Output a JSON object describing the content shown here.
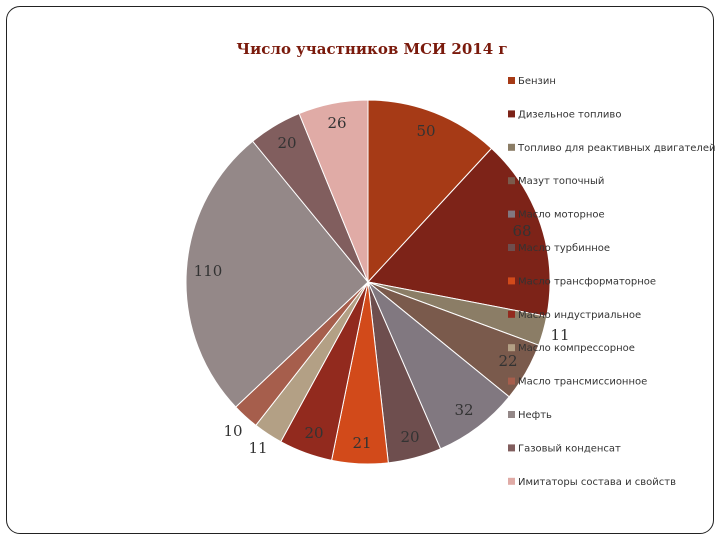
{
  "chart_data": {
    "type": "pie",
    "title": "Число участников МСИ 2014 г",
    "legend_position": "right",
    "categories": [
      "Бензин",
      "Дизельное топливо",
      "Топливо для реактивных двигателей",
      "Мазут топочный",
      "Масло моторное",
      "Масло турбинное",
      "Масло трансформаторное",
      "Масло индустриальное",
      "Масло компрессорное",
      "Масло трансмиссионное",
      "Нефть",
      "Газовый конденсат",
      "Имитаторы состава и свойств"
    ],
    "values": [
      50,
      68,
      11,
      22,
      32,
      20,
      21,
      20,
      11,
      10,
      110,
      20,
      26
    ],
    "colors": [
      "#a63a16",
      "#7d2318",
      "#8b7d66",
      "#7a5a4c",
      "#817880",
      "#6e4e4e",
      "#d24a1a",
      "#922a1e",
      "#b3a085",
      "#a65e4c",
      "#948888",
      "#815e5e",
      "#e0aba6"
    ]
  }
}
